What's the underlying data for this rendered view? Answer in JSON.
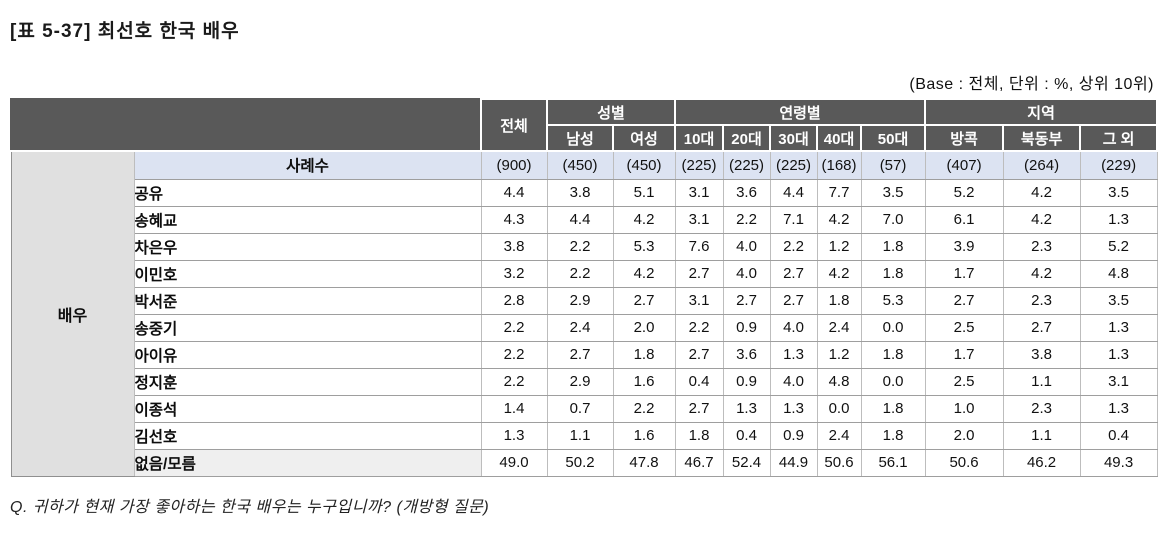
{
  "title": "[표 5-37] 최선호 한국 배우",
  "base_note": "(Base : 전체, 단위 : %, 상위 10위)",
  "question": "Q. 귀하가 현재 가장 좋아하는 한국 배우는 누구입니까? (개방형 질문)",
  "colors": {
    "header_bg": "#595959",
    "base_row_bg": "#dce3f2",
    "side_bg": "#e0e0e0",
    "last_row_bg": "#efefef"
  },
  "table": {
    "row_group_label": "배우",
    "col_groups": [
      {
        "label": "전체",
        "span": 1,
        "two_rows": true
      },
      {
        "label": "성별",
        "span": 2
      },
      {
        "label": "연령별",
        "span": 5
      },
      {
        "label": "지역",
        "span": 3
      }
    ],
    "sub_headers": [
      "남성",
      "여성",
      "10대",
      "20대",
      "30대",
      "40대",
      "50대",
      "방콕",
      "북동부",
      "그 외"
    ],
    "base_row": {
      "label": "사례수",
      "values": [
        "(900)",
        "(450)",
        "(450)",
        "(225)",
        "(225)",
        "(225)",
        "(168)",
        "(57)",
        "(407)",
        "(264)",
        "(229)"
      ]
    },
    "rows": [
      {
        "label": "공유",
        "values": [
          "4.4",
          "3.8",
          "5.1",
          "3.1",
          "3.6",
          "4.4",
          "7.7",
          "3.5",
          "5.2",
          "4.2",
          "3.5"
        ]
      },
      {
        "label": "송혜교",
        "values": [
          "4.3",
          "4.4",
          "4.2",
          "3.1",
          "2.2",
          "7.1",
          "4.2",
          "7.0",
          "6.1",
          "4.2",
          "1.3"
        ]
      },
      {
        "label": "차은우",
        "values": [
          "3.8",
          "2.2",
          "5.3",
          "7.6",
          "4.0",
          "2.2",
          "1.2",
          "1.8",
          "3.9",
          "2.3",
          "5.2"
        ]
      },
      {
        "label": "이민호",
        "values": [
          "3.2",
          "2.2",
          "4.2",
          "2.7",
          "4.0",
          "2.7",
          "4.2",
          "1.8",
          "1.7",
          "4.2",
          "4.8"
        ]
      },
      {
        "label": "박서준",
        "values": [
          "2.8",
          "2.9",
          "2.7",
          "3.1",
          "2.7",
          "2.7",
          "1.8",
          "5.3",
          "2.7",
          "2.3",
          "3.5"
        ]
      },
      {
        "label": "송중기",
        "values": [
          "2.2",
          "2.4",
          "2.0",
          "2.2",
          "0.9",
          "4.0",
          "2.4",
          "0.0",
          "2.5",
          "2.7",
          "1.3"
        ]
      },
      {
        "label": "아이유",
        "values": [
          "2.2",
          "2.7",
          "1.8",
          "2.7",
          "3.6",
          "1.3",
          "1.2",
          "1.8",
          "1.7",
          "3.8",
          "1.3"
        ]
      },
      {
        "label": "정지훈",
        "values": [
          "2.2",
          "2.9",
          "1.6",
          "0.4",
          "0.9",
          "4.0",
          "4.8",
          "0.0",
          "2.5",
          "1.1",
          "3.1"
        ]
      },
      {
        "label": "이종석",
        "values": [
          "1.4",
          "0.7",
          "2.2",
          "2.7",
          "1.3",
          "1.3",
          "0.0",
          "1.8",
          "1.0",
          "2.3",
          "1.3"
        ]
      },
      {
        "label": "김선호",
        "values": [
          "1.3",
          "1.1",
          "1.6",
          "1.8",
          "0.4",
          "0.9",
          "2.4",
          "1.8",
          "2.0",
          "1.1",
          "0.4"
        ]
      },
      {
        "label": "없음/모름",
        "values": [
          "49.0",
          "50.2",
          "47.8",
          "46.7",
          "52.4",
          "44.9",
          "50.6",
          "56.1",
          "50.6",
          "46.2",
          "49.3"
        ],
        "shaded_label": true
      }
    ]
  }
}
